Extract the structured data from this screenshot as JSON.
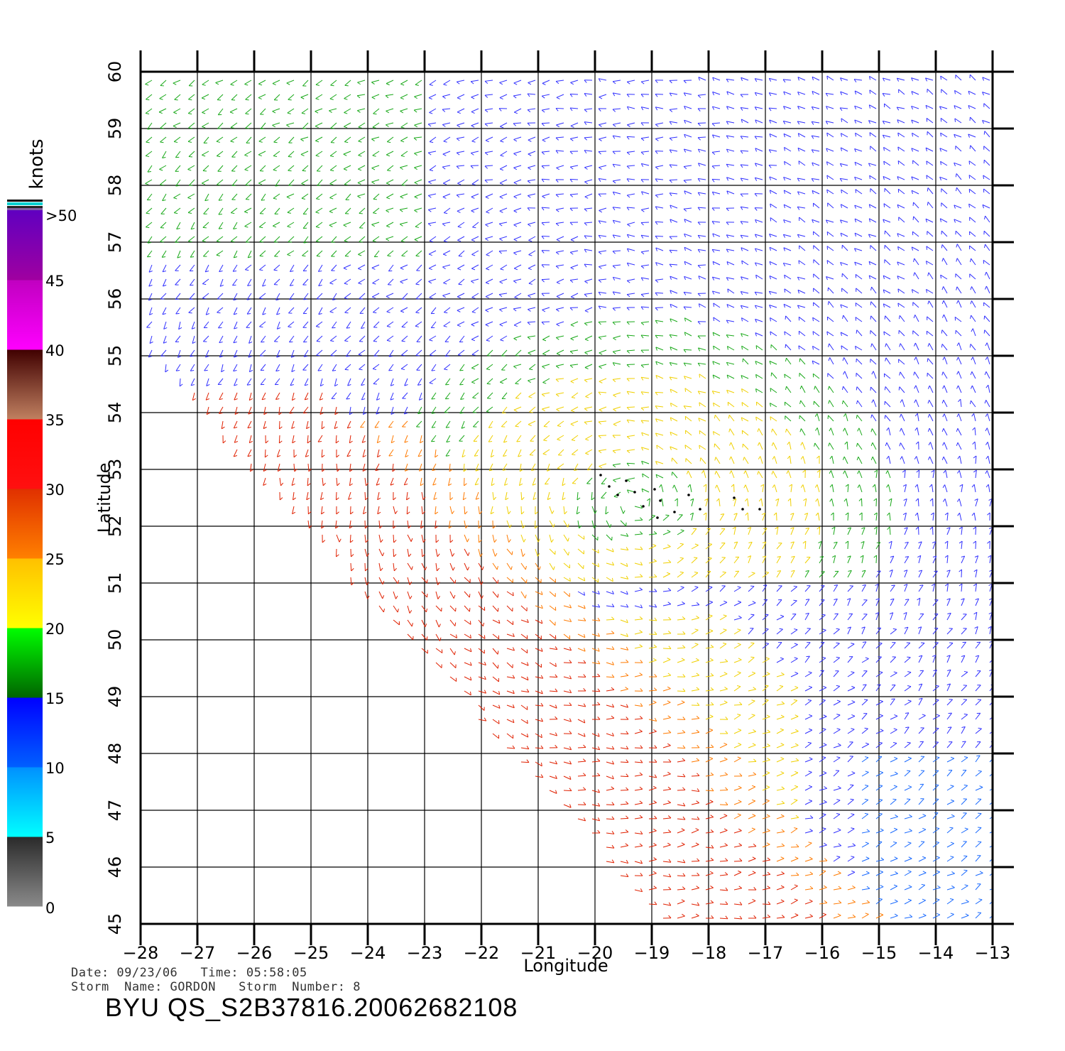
{
  "chart_data": {
    "type": "scatter",
    "title": "",
    "xlabel": "Longitude",
    "ylabel": "Latitude",
    "xlim": [
      -28,
      -13
    ],
    "ylim": [
      45,
      60
    ],
    "x_ticks": [
      -28,
      -27,
      -26,
      -25,
      -24,
      -23,
      -22,
      -21,
      -20,
      -19,
      -18,
      -17,
      -16,
      -15,
      -14,
      -13
    ],
    "x_tick_labels": [
      "-28",
      "-27",
      "-26",
      "-25",
      "-24",
      "-23",
      "-22",
      "-21",
      "-20",
      "-19",
      "-18",
      "-17",
      "-16",
      "-15",
      "-14",
      "-13"
    ],
    "y_ticks": [
      45,
      46,
      47,
      48,
      49,
      50,
      51,
      52,
      53,
      54,
      55,
      56,
      57,
      58,
      59,
      60
    ],
    "y_tick_labels": [
      "45",
      "46",
      "47",
      "48",
      "49",
      "50",
      "51",
      "52",
      "53",
      "54",
      "55",
      "56",
      "57",
      "58",
      "59",
      "60"
    ],
    "grid": true,
    "storm_center": {
      "lon": -19.3,
      "lat": 52.4
    },
    "flagged_points": [
      {
        "lon": -19.9,
        "lat": 52.9
      },
      {
        "lon": -19.75,
        "lat": 52.7
      },
      {
        "lon": -19.45,
        "lat": 52.8
      },
      {
        "lon": -19.6,
        "lat": 52.55
      },
      {
        "lon": -19.3,
        "lat": 52.6
      },
      {
        "lon": -19.15,
        "lat": 52.35
      },
      {
        "lon": -18.95,
        "lat": 52.65
      },
      {
        "lon": -18.85,
        "lat": 52.45
      },
      {
        "lon": -18.9,
        "lat": 52.15
      },
      {
        "lon": -18.6,
        "lat": 52.25
      },
      {
        "lon": -18.35,
        "lat": 52.55
      },
      {
        "lon": -18.15,
        "lat": 52.3
      },
      {
        "lon": -17.55,
        "lat": 52.5
      },
      {
        "lon": -17.4,
        "lat": 52.3
      },
      {
        "lon": -17.1,
        "lat": 52.3
      }
    ],
    "colorbar": {
      "unit_label": "knots",
      "tick_labels": [
        "0",
        "5",
        "10",
        "15",
        "20",
        "25",
        "30",
        "35",
        "40",
        "45",
        ">50"
      ],
      "segments": [
        {
          "min": 0,
          "max": 5,
          "colors": [
            "#8a8a8a",
            "#2a2a2a"
          ]
        },
        {
          "min": 5,
          "max": 10,
          "colors": [
            "#00ffff",
            "#0090ff"
          ]
        },
        {
          "min": 10,
          "max": 15,
          "colors": [
            "#0060ff",
            "#0000ff"
          ]
        },
        {
          "min": 15,
          "max": 20,
          "colors": [
            "#006400",
            "#00ff00"
          ]
        },
        {
          "min": 20,
          "max": 25,
          "colors": [
            "#ffff00",
            "#ffc000"
          ]
        },
        {
          "min": 25,
          "max": 30,
          "colors": [
            "#ff8000",
            "#e03000"
          ]
        },
        {
          "min": 30,
          "max": 35,
          "colors": [
            "#ff1010",
            "#ff0000"
          ]
        },
        {
          "min": 35,
          "max": 40,
          "colors": [
            "#c08060",
            "#400000"
          ]
        },
        {
          "min": 40,
          "max": 45,
          "colors": [
            "#ff00ff",
            "#c000c0"
          ]
        },
        {
          "min": 45,
          "max": 50,
          "colors": [
            "#a000a0",
            "#6000c0"
          ]
        }
      ]
    },
    "speed_colors": {
      "calm": "#3030ff",
      "light": "#1a6aff",
      "moderate": "#18a818",
      "fresh": "#f0d000",
      "strong": "#ff7a00",
      "gale": "#e02000"
    }
  },
  "info": {
    "line1": "Date: 09/23/06   Time: 05:58:05",
    "line2": "Storm  Name: GORDON   Storm  Number: 8",
    "product": "BYU  QS_S2B37816.20062682108"
  }
}
